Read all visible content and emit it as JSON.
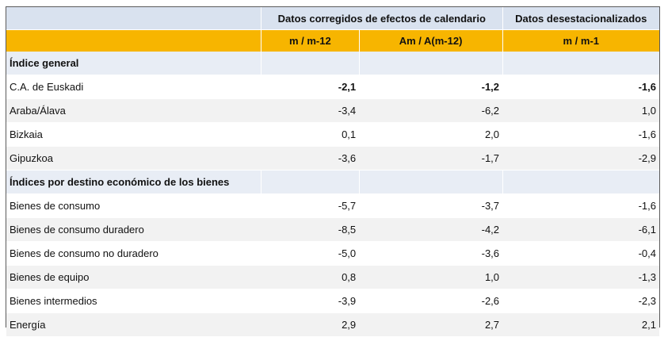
{
  "header": {
    "group1": "Datos corregidos de efectos de calendario",
    "group2": "Datos desestacionalizados",
    "col1": "m / m-12",
    "col2": "Am / A(m-12)",
    "col3": "m / m-1"
  },
  "sections": [
    {
      "title": "Índice general",
      "rows": [
        {
          "label": "C.A. de Euskadi",
          "v1": "-2,1",
          "v2": "-1,2",
          "v3": "-1,6",
          "bold": true
        },
        {
          "label": "Araba/Álava",
          "v1": "-3,4",
          "v2": "-6,2",
          "v3": "1,0"
        },
        {
          "label": "Bizkaia",
          "v1": "0,1",
          "v2": "2,0",
          "v3": "-1,6"
        },
        {
          "label": "Gipuzkoa",
          "v1": "-3,6",
          "v2": "-1,7",
          "v3": "-2,9"
        }
      ]
    },
    {
      "title": "Índices por destino económico de los bienes",
      "rows": [
        {
          "label": "Bienes de consumo",
          "v1": "-5,7",
          "v2": "-3,7",
          "v3": "-1,6"
        },
        {
          "label": "Bienes de consumo duradero",
          "v1": "-8,5",
          "v2": "-4,2",
          "v3": "-6,1"
        },
        {
          "label": "Bienes de consumo no duradero",
          "v1": "-5,0",
          "v2": "-3,6",
          "v3": "-0,4"
        },
        {
          "label": "Bienes de equipo",
          "v1": "0,8",
          "v2": "1,0",
          "v3": "-1,3"
        },
        {
          "label": "Bienes intermedios",
          "v1": "-3,9",
          "v2": "-2,6",
          "v3": "-2,3"
        },
        {
          "label": "Energía",
          "v1": "2,9",
          "v2": "2,7",
          "v3": "2,1"
        }
      ]
    }
  ]
}
